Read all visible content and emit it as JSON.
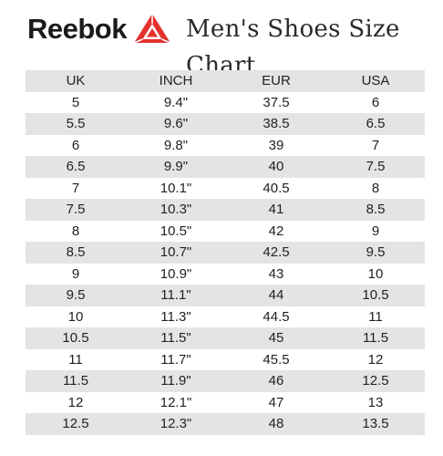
{
  "header": {
    "brand": "Reebok",
    "logo_icon": "reebok-delta-logo",
    "brand_color": "#e5322d",
    "title": "Men's Shoes Size Chart"
  },
  "table": {
    "columns": [
      "UK",
      "INCH",
      "EUR",
      "USA"
    ],
    "rows": [
      [
        "5",
        "9.4\"",
        "37.5",
        "6"
      ],
      [
        "5.5",
        "9.6\"",
        "38.5",
        "6.5"
      ],
      [
        "6",
        "9.8\"",
        "39",
        "7"
      ],
      [
        "6.5",
        "9.9\"",
        "40",
        "7.5"
      ],
      [
        "7",
        "10.1\"",
        "40.5",
        "8"
      ],
      [
        "7.5",
        "10.3\"",
        "41",
        "8.5"
      ],
      [
        "8",
        "10.5\"",
        "42",
        "9"
      ],
      [
        "8.5",
        "10.7\"",
        "42.5",
        "9.5"
      ],
      [
        "9",
        "10.9\"",
        "43",
        "10"
      ],
      [
        "9.5",
        "11.1\"",
        "44",
        "10.5"
      ],
      [
        "10",
        "11.3\"",
        "44.5",
        "11"
      ],
      [
        "10.5",
        "11.5\"",
        "45",
        "11.5"
      ],
      [
        "11",
        "11.7\"",
        "45.5",
        "12"
      ],
      [
        "11.5",
        "11.9\"",
        "46",
        "12.5"
      ],
      [
        "12",
        "12.1\"",
        "47",
        "13"
      ],
      [
        "12.5",
        "12.3\"",
        "48",
        "13.5"
      ]
    ]
  }
}
